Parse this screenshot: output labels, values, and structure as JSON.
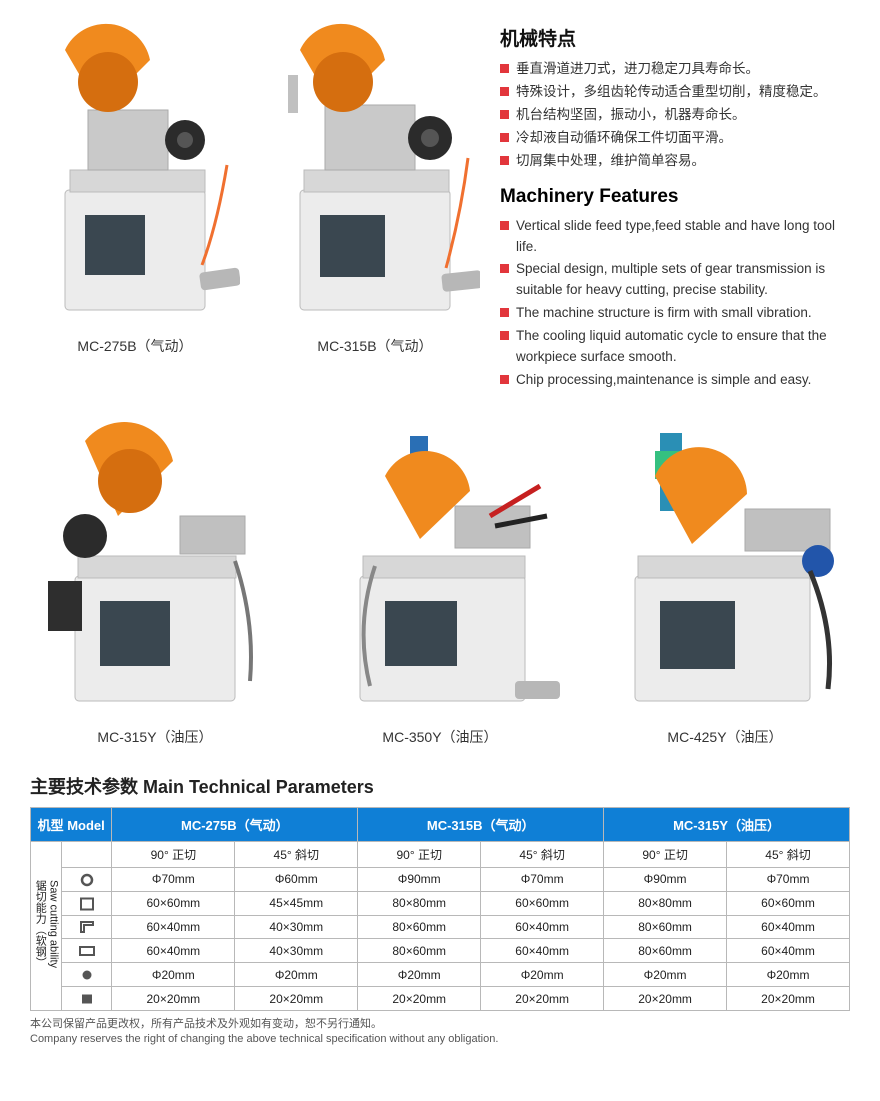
{
  "colors": {
    "accent": "#e2363c",
    "table_header_bg": "#0f7fd6",
    "table_header_fg": "#ffffff",
    "border": "#b8b8b8"
  },
  "features_cn": {
    "title": "机械特点",
    "items": [
      "垂直滑道进刀式，进刀稳定刀具寿命长。",
      "特殊设计，多组齿轮传动适合重型切削，精度稳定。",
      "机台结构坚固，振动小，机器寿命长。",
      "冷却液自动循环确保工件切面平滑。",
      "切屑集中处理，维护简单容易。"
    ]
  },
  "features_en": {
    "title": "Machinery Features",
    "items": [
      "Vertical slide feed type,feed stable and have long tool life.",
      "Special design, multiple sets of gear transmission is suitable for heavy cutting, precise stability.",
      "The machine structure is firm with small vibration.",
      "The cooling liquid automatic cycle to ensure that the workpiece surface smooth.",
      "Chip processing,maintenance is simple and easy."
    ]
  },
  "products_top": [
    {
      "label": "MC-275B（气动）"
    },
    {
      "label": "MC-315B（气动）"
    }
  ],
  "products_bot": [
    {
      "label": "MC-315Y（油压）"
    },
    {
      "label": "MC-350Y（油压）"
    },
    {
      "label": "MC-425Y（油压）"
    }
  ],
  "params": {
    "title": "主要技术参数 Main Technical Parameters",
    "header": {
      "model": "机型 Model",
      "cols": [
        "MC-275B（气动）",
        "MC-315B（气动）",
        "MC-315Y（油压）"
      ]
    },
    "subhead": [
      "90° 正切",
      "45° 斜切",
      "90° 正切",
      "45° 斜切",
      "90° 正切",
      "45° 斜切"
    ],
    "side": {
      "cn": "锯切能力（软钢）",
      "en": "Saw cutting ability"
    },
    "row_icons": [
      "ring",
      "square-o",
      "angle",
      "rect-o",
      "dot",
      "square-f"
    ],
    "rows": [
      [
        "Φ70mm",
        "Φ60mm",
        "Φ90mm",
        "Φ70mm",
        "Φ90mm",
        "Φ70mm"
      ],
      [
        "60×60mm",
        "45×45mm",
        "80×80mm",
        "60×60mm",
        "80×80mm",
        "60×60mm"
      ],
      [
        "60×40mm",
        "40×30mm",
        "80×60mm",
        "60×40mm",
        "80×60mm",
        "60×40mm"
      ],
      [
        "60×40mm",
        "40×30mm",
        "80×60mm",
        "60×40mm",
        "80×60mm",
        "60×40mm"
      ],
      [
        "Φ20mm",
        "Φ20mm",
        "Φ20mm",
        "Φ20mm",
        "Φ20mm",
        "Φ20mm"
      ],
      [
        "20×20mm",
        "20×20mm",
        "20×20mm",
        "20×20mm",
        "20×20mm",
        "20×20mm"
      ]
    ]
  },
  "footnote": {
    "cn": "本公司保留产品更改权，所有产品技术及外观如有变动，恕不另行通知。",
    "en": "Company reserves the right of changing the above technical specification without any obligation."
  }
}
